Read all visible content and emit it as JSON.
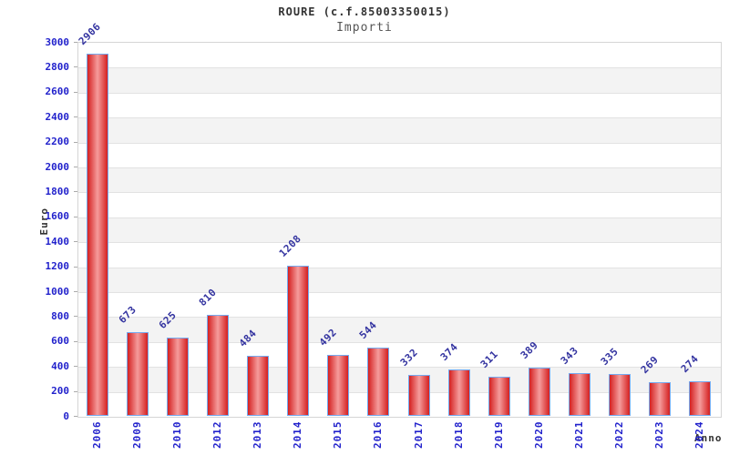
{
  "header": {
    "title": "ROURE (c.f.85003350015)",
    "subtitle": "Importi"
  },
  "chart_data": {
    "type": "bar",
    "title": "ROURE (c.f.85003350015)",
    "subtitle": "Importi",
    "xlabel": "Anno",
    "ylabel": "Euro",
    "categories": [
      "2006",
      "2009",
      "2010",
      "2012",
      "2013",
      "2014",
      "2015",
      "2016",
      "2017",
      "2018",
      "2019",
      "2020",
      "2021",
      "2022",
      "2023",
      "2024"
    ],
    "values": [
      2906,
      673,
      625,
      810,
      484,
      1208,
      492,
      544,
      332,
      374,
      311,
      389,
      343,
      335,
      269,
      274
    ],
    "ylim": [
      0,
      3000
    ],
    "ytick_step": 200,
    "grid": "horizontal",
    "legend_position": "none",
    "colors": {
      "bar_fill_edge": "#d42020",
      "bar_fill_center": "#f59c9c",
      "bar_border": "#74aaf0",
      "tick_label": "#2222cc",
      "value_label": "#3333a0",
      "title": "#333333",
      "subtitle": "#555555",
      "band_alt": "#f3f3f3",
      "gridline": "#e2e2e2"
    }
  }
}
